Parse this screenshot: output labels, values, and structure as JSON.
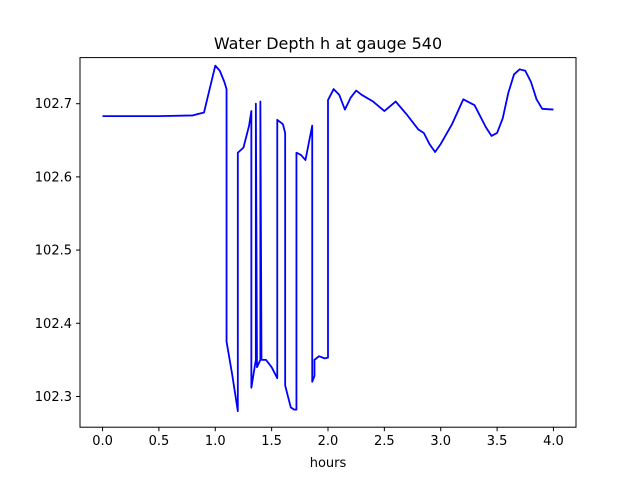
{
  "chart_data": {
    "type": "line",
    "title": "Water Depth h at gauge 540",
    "xlabel": "hours",
    "ylabel": "",
    "xlim": [
      -0.2,
      4.2
    ],
    "ylim": [
      102.258,
      102.763
    ],
    "xticks": [
      0.0,
      0.5,
      1.0,
      1.5,
      2.0,
      2.5,
      3.0,
      3.5,
      4.0
    ],
    "xtick_labels": [
      "0.0",
      "0.5",
      "1.0",
      "1.5",
      "2.0",
      "2.5",
      "3.0",
      "3.5",
      "4.0"
    ],
    "yticks": [
      102.3,
      102.4,
      102.5,
      102.6,
      102.7
    ],
    "ytick_labels": [
      "102.3",
      "102.4",
      "102.5",
      "102.6",
      "102.7"
    ],
    "grid": false,
    "line_color": "#0000ff",
    "series": [
      {
        "x": [
          0.0,
          0.5,
          0.8,
          0.9,
          0.95,
          1.0,
          1.04,
          1.08,
          1.1,
          1.1,
          1.15,
          1.2,
          1.2,
          1.25,
          1.3,
          1.32,
          1.32,
          1.36,
          1.36,
          1.37,
          1.4,
          1.4,
          1.41,
          1.45,
          1.5,
          1.55,
          1.55,
          1.6,
          1.62,
          1.62,
          1.67,
          1.7,
          1.72,
          1.72,
          1.76,
          1.8,
          1.86,
          1.86,
          1.88,
          1.88,
          1.92,
          1.97,
          2.0,
          2.0,
          2.05,
          2.1,
          2.15,
          2.2,
          2.25,
          2.3,
          2.4,
          2.5,
          2.6,
          2.7,
          2.8,
          2.85,
          2.9,
          2.95,
          3.0,
          3.1,
          3.2,
          3.3,
          3.4,
          3.45,
          3.5,
          3.55,
          3.6,
          3.65,
          3.7,
          3.75,
          3.8,
          3.85,
          3.9,
          4.0
        ],
        "y": [
          102.683,
          102.683,
          102.684,
          102.688,
          102.72,
          102.752,
          102.745,
          102.73,
          102.72,
          102.375,
          102.33,
          102.28,
          102.633,
          102.64,
          102.67,
          102.69,
          102.312,
          102.35,
          102.7,
          102.34,
          102.35,
          102.703,
          102.35,
          102.35,
          102.34,
          102.325,
          102.678,
          102.672,
          102.66,
          102.315,
          102.285,
          102.282,
          102.282,
          102.633,
          102.63,
          102.623,
          102.67,
          102.32,
          102.328,
          102.35,
          102.355,
          102.352,
          102.353,
          102.705,
          102.72,
          102.712,
          102.692,
          102.708,
          102.718,
          102.712,
          102.703,
          102.69,
          102.703,
          102.685,
          102.665,
          102.66,
          102.645,
          102.634,
          102.645,
          102.672,
          102.706,
          102.698,
          102.668,
          102.656,
          102.66,
          102.68,
          102.715,
          102.74,
          102.747,
          102.745,
          102.73,
          102.706,
          102.693,
          102.692
        ]
      }
    ]
  }
}
